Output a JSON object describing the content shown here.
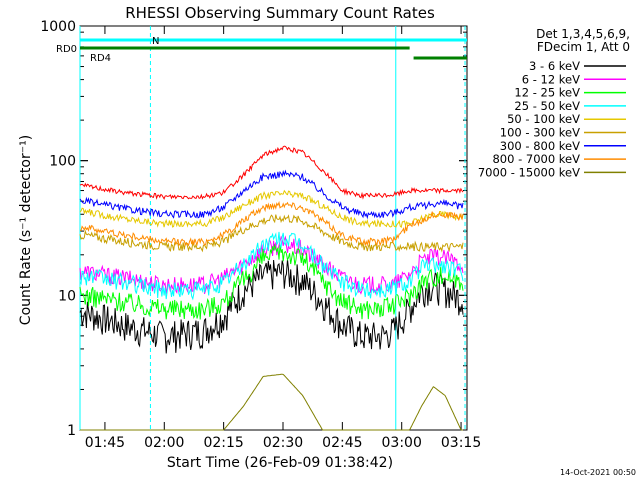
{
  "chart_data": {
    "type": "line",
    "title": "RHESSI Observing Summary Count Rates",
    "xlabel": "Start Time (26-Feb-09 01:38:42)",
    "ylabel": "Count Rate (s⁻¹ detector⁻¹)",
    "y_scale": "log",
    "ylim": [
      1,
      1000
    ],
    "xlim": [
      "01:38:42",
      "03:16:30"
    ],
    "x_ticks": [
      "01:45",
      "02:00",
      "02:15",
      "02:30",
      "02:45",
      "03:00",
      "03:15"
    ],
    "y_ticks": [
      "1",
      "10",
      "100",
      "1000"
    ],
    "legend_position": "right",
    "legend_header": [
      "Det 1,3,4,5,6,9,",
      "FDecim 1, Att 0"
    ],
    "footer": "14-Oct-2021 00:50",
    "x": [
      "01:40",
      "01:50",
      "02:00",
      "02:10",
      "02:15",
      "02:20",
      "02:25",
      "02:30",
      "02:35",
      "02:40",
      "02:45",
      "02:50",
      "02:55",
      "02:58",
      "03:02",
      "03:05",
      "03:08",
      "03:11",
      "03:15"
    ],
    "series": [
      {
        "name": "3 - 6 keV",
        "color": "#000000",
        "values": [
          7.5,
          6,
          5,
          5.5,
          7,
          11,
          14,
          15,
          13,
          9,
          6,
          5,
          5,
          5.5,
          8,
          11,
          12,
          11,
          9.5
        ]
      },
      {
        "name": "6 - 12 keV",
        "color": "#ff00ff",
        "values": [
          15,
          13.5,
          12,
          12,
          13.5,
          17,
          22,
          24,
          22,
          17,
          13.5,
          12,
          12,
          12,
          14.5,
          18,
          19.5,
          19,
          17
        ]
      },
      {
        "name": "12 - 25 keV",
        "color": "#00ff00",
        "values": [
          10,
          9,
          8,
          8,
          9,
          13,
          19,
          21,
          19,
          13,
          9,
          8,
          8,
          8.5,
          10,
          12.5,
          14,
          14,
          13
        ]
      },
      {
        "name": "25 - 50 keV",
        "color": "#00ffff",
        "values": [
          14,
          12.5,
          11,
          11,
          12.5,
          17,
          24,
          27,
          24,
          17,
          12.5,
          11,
          11,
          11.5,
          13,
          16,
          17,
          16.5,
          15
        ]
      },
      {
        "name": "50 - 100 keV",
        "color": "#e6c800",
        "values": [
          42,
          37,
          34,
          34,
          38,
          47,
          55,
          57,
          55,
          46,
          38,
          34,
          34,
          34,
          34,
          37,
          40,
          40,
          38
        ]
      },
      {
        "name": "100 - 300 keV",
        "color": "#c8a000",
        "values": [
          28,
          25,
          23,
          23,
          25,
          31,
          36,
          38,
          36,
          30,
          25,
          23,
          23,
          23,
          23,
          23,
          23,
          23,
          23
        ]
      },
      {
        "name": "300 - 800 keV",
        "color": "#0000ff",
        "values": [
          50,
          44,
          40,
          40,
          45,
          60,
          76,
          80,
          76,
          58,
          45,
          40,
          40,
          41,
          45,
          46,
          48,
          48,
          46
        ]
      },
      {
        "name": "800 - 7000 keV",
        "color": "#ff8c00",
        "values": [
          32,
          28,
          25,
          25,
          28,
          36,
          45,
          48,
          45,
          36,
          28,
          25,
          25,
          26,
          33,
          36,
          40,
          40,
          38
        ]
      },
      {
        "name": "7000 - 15000 keV",
        "color": "#808000",
        "values": [
          1,
          1,
          1,
          1,
          1,
          1.5,
          2.5,
          2.6,
          1.8,
          1,
          1,
          1,
          1,
          1,
          1,
          1.5,
          2.1,
          1.8,
          1
        ]
      }
    ],
    "extra_series": [
      {
        "name": "RD4 red segment",
        "color": "#ff0000",
        "values": [
          65,
          58,
          54,
          54,
          58,
          78,
          110,
          125,
          115,
          85,
          60,
          55,
          55,
          56,
          60,
          60,
          60,
          60,
          60
        ]
      }
    ],
    "state_bars": [
      {
        "label": "N",
        "color": "#00ffff",
        "from": "01:38:42",
        "to": "03:16:30"
      },
      {
        "label": "RD0",
        "color": "#008000",
        "from": "01:38:42",
        "to": "03:02:00"
      },
      {
        "label": "RD4",
        "color": "#008000",
        "from": "03:03:00",
        "to": "03:16:30"
      }
    ],
    "vertical_markers": [
      {
        "time": "01:38:42",
        "color": "#00ffff",
        "style": "solid"
      },
      {
        "time": "01:56:30",
        "color": "#00ffff",
        "style": "dashed"
      },
      {
        "time": "02:58:30",
        "color": "#00ffff",
        "style": "solid"
      },
      {
        "time": "03:16:00",
        "color": "#00ffff",
        "style": "dashed"
      }
    ]
  }
}
